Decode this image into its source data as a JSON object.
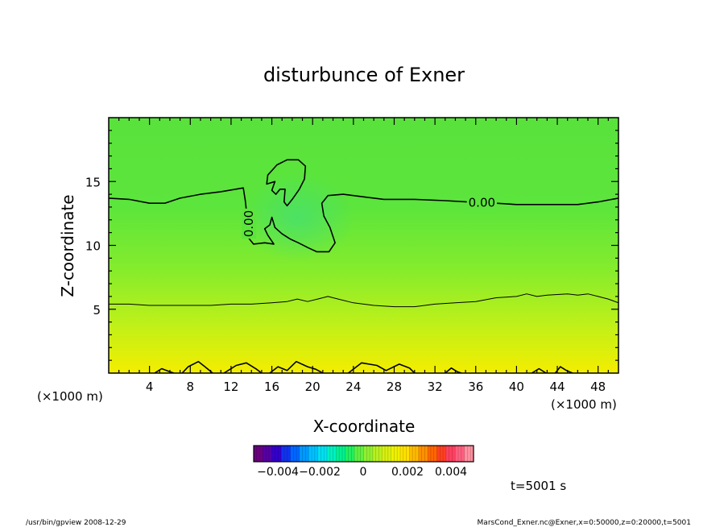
{
  "chart_data": {
    "type": "heatmap",
    "title": "disturbunce of Exner",
    "xlabel": "X-coordinate",
    "ylabel": "Z-coordinate",
    "x_unit_left": "(×1000 m)",
    "x_unit_right": "(×1000 m)",
    "xlim": [
      0,
      50
    ],
    "ylim": [
      0,
      20
    ],
    "x_ticks": [
      {
        "value": 4,
        "label": "4"
      },
      {
        "value": 8,
        "label": "8"
      },
      {
        "value": 12,
        "label": "12"
      },
      {
        "value": 16,
        "label": "16"
      },
      {
        "value": 20,
        "label": "20"
      },
      {
        "value": 24,
        "label": "24"
      },
      {
        "value": 28,
        "label": "28"
      },
      {
        "value": 32,
        "label": "32"
      },
      {
        "value": 36,
        "label": "36"
      },
      {
        "value": 40,
        "label": "40"
      },
      {
        "value": 44,
        "label": "44"
      },
      {
        "value": 48,
        "label": "48"
      }
    ],
    "y_ticks": [
      {
        "value": 5,
        "label": "5"
      },
      {
        "value": 10,
        "label": "10"
      },
      {
        "value": 15,
        "label": "15"
      }
    ],
    "contour_labels": [
      {
        "text": "0.00",
        "x": 36.6,
        "z": 13.3,
        "rotate": 0
      },
      {
        "text": "0.00",
        "x": 13.8,
        "z": 11.7,
        "rotate": -90
      }
    ],
    "contours": [
      {
        "level": "0.00",
        "width": 1.6,
        "points": [
          [
            0,
            13.7
          ],
          [
            2,
            13.6
          ],
          [
            4,
            13.3
          ],
          [
            5.5,
            13.3
          ],
          [
            7,
            13.7
          ],
          [
            9,
            14.0
          ],
          [
            11,
            14.2
          ],
          [
            13.2,
            14.5
          ],
          [
            13.4,
            13.5
          ],
          [
            13.6,
            12.0
          ],
          [
            13.7,
            10.6
          ],
          [
            14.2,
            10.1
          ],
          [
            15.3,
            10.2
          ],
          [
            16.2,
            10.1
          ],
          [
            15.6,
            10.8
          ],
          [
            15.3,
            11.3
          ],
          [
            15.8,
            11.6
          ],
          [
            16.0,
            12.2
          ],
          [
            16.3,
            11.4
          ],
          [
            17.0,
            10.9
          ],
          [
            17.8,
            10.5
          ],
          [
            18.6,
            10.2
          ],
          [
            19.6,
            9.8
          ],
          [
            20.4,
            9.5
          ],
          [
            21.6,
            9.5
          ],
          [
            22.2,
            10.2
          ],
          [
            21.7,
            11.4
          ],
          [
            21.1,
            12.3
          ],
          [
            20.9,
            13.3
          ],
          [
            21.5,
            13.9
          ],
          [
            23,
            14.0
          ],
          [
            25,
            13.8
          ],
          [
            27,
            13.6
          ],
          [
            30,
            13.6
          ],
          [
            33,
            13.5
          ],
          [
            35.2,
            13.4
          ],
          [
            38,
            13.3
          ],
          [
            40,
            13.2
          ],
          [
            42,
            13.2
          ],
          [
            44,
            13.2
          ],
          [
            46,
            13.2
          ],
          [
            48,
            13.4
          ],
          [
            50,
            13.7
          ]
        ]
      },
      {
        "level": "0.00",
        "width": 1.6,
        "closed": true,
        "points": [
          [
            16.3,
            15.0
          ],
          [
            15.5,
            14.8
          ],
          [
            15.6,
            15.5
          ],
          [
            16.5,
            16.3
          ],
          [
            17.5,
            16.7
          ],
          [
            18.6,
            16.7
          ],
          [
            19.3,
            16.2
          ],
          [
            19.2,
            15.2
          ],
          [
            18.7,
            14.4
          ],
          [
            18.0,
            13.6
          ],
          [
            17.5,
            13.1
          ],
          [
            17.2,
            13.4
          ],
          [
            17.3,
            14.4
          ],
          [
            16.8,
            14.4
          ],
          [
            16.4,
            14.0
          ],
          [
            16.0,
            14.3
          ]
        ]
      },
      {
        "level": "",
        "width": 1.0,
        "points": [
          [
            0,
            5.4
          ],
          [
            2,
            5.4
          ],
          [
            4,
            5.3
          ],
          [
            6,
            5.3
          ],
          [
            8,
            5.3
          ],
          [
            10,
            5.3
          ],
          [
            12,
            5.4
          ],
          [
            14,
            5.4
          ],
          [
            16,
            5.5
          ],
          [
            17.5,
            5.6
          ],
          [
            18.5,
            5.8
          ],
          [
            19.5,
            5.6
          ],
          [
            20.5,
            5.8
          ],
          [
            21.5,
            6.0
          ],
          [
            22.5,
            5.8
          ],
          [
            24,
            5.5
          ],
          [
            26,
            5.3
          ],
          [
            28,
            5.2
          ],
          [
            30,
            5.2
          ],
          [
            32,
            5.4
          ],
          [
            34,
            5.5
          ],
          [
            36,
            5.6
          ],
          [
            38,
            5.9
          ],
          [
            40,
            6.0
          ],
          [
            41,
            6.2
          ],
          [
            42,
            6.0
          ],
          [
            43,
            6.1
          ],
          [
            45,
            6.2
          ],
          [
            46,
            6.1
          ],
          [
            47,
            6.2
          ],
          [
            48,
            6.0
          ],
          [
            49,
            5.8
          ],
          [
            50,
            5.5
          ]
        ]
      },
      {
        "level": "",
        "width": 1.6,
        "points": [
          [
            4.5,
            0
          ],
          [
            5.2,
            0.35
          ],
          [
            6.0,
            0.1
          ],
          [
            6.4,
            0
          ]
        ]
      },
      {
        "level": "",
        "width": 1.6,
        "points": [
          [
            7.2,
            0
          ],
          [
            7.8,
            0.5
          ],
          [
            8.8,
            0.9
          ],
          [
            9.6,
            0.4
          ],
          [
            10.2,
            0
          ]
        ]
      },
      {
        "level": "",
        "width": 1.6,
        "points": [
          [
            11.3,
            0
          ],
          [
            12.5,
            0.6
          ],
          [
            13.5,
            0.8
          ],
          [
            14.5,
            0.3
          ],
          [
            15.0,
            0
          ]
        ]
      },
      {
        "level": "",
        "width": 1.6,
        "points": [
          [
            15.8,
            0
          ],
          [
            16.6,
            0.5
          ],
          [
            17.5,
            0.2
          ],
          [
            18.4,
            0.9
          ],
          [
            19.5,
            0.5
          ],
          [
            20.3,
            0.3
          ],
          [
            21.0,
            0
          ]
        ]
      },
      {
        "level": "",
        "width": 1.6,
        "points": [
          [
            23.5,
            0
          ],
          [
            24.8,
            0.8
          ],
          [
            26.3,
            0.6
          ],
          [
            27.2,
            0.2
          ],
          [
            28.5,
            0.7
          ],
          [
            29.5,
            0.4
          ],
          [
            30.0,
            0
          ]
        ]
      },
      {
        "level": "",
        "width": 1.6,
        "points": [
          [
            33.0,
            0
          ],
          [
            33.6,
            0.4
          ],
          [
            34.2,
            0.1
          ],
          [
            34.6,
            0
          ]
        ]
      },
      {
        "level": "",
        "width": 1.6,
        "points": [
          [
            41.5,
            0
          ],
          [
            42.2,
            0.35
          ],
          [
            42.9,
            0
          ]
        ]
      },
      {
        "level": "",
        "width": 1.6,
        "points": [
          [
            43.8,
            0
          ],
          [
            44.3,
            0.5
          ],
          [
            44.9,
            0.2
          ],
          [
            45.5,
            0
          ]
        ]
      }
    ]
  },
  "colorbar": {
    "tick_labels": [
      "−0.004",
      "−0.002",
      "0",
      "0.002",
      "0.004"
    ],
    "colors": [
      "#6b0080",
      "#5500a6",
      "#3300cc",
      "#1133ee",
      "#0066ff",
      "#0099ff",
      "#00c0ff",
      "#00e0f0",
      "#00f0c0",
      "#00f090",
      "#20f060",
      "#60f040",
      "#90f030",
      "#b8f020",
      "#d8f010",
      "#eef000",
      "#ffe000",
      "#ffbb00",
      "#ff9000",
      "#ff6600",
      "#ff4020",
      "#ff4060",
      "#ff6080",
      "#ff90a0"
    ]
  },
  "time_label": "t=5001 s",
  "footer": {
    "left": "/usr/bin/gpview  2008-12-29",
    "right": "MarsCond_Exner.nc@Exner,x=0:50000,z=0:20000,t=5001"
  }
}
